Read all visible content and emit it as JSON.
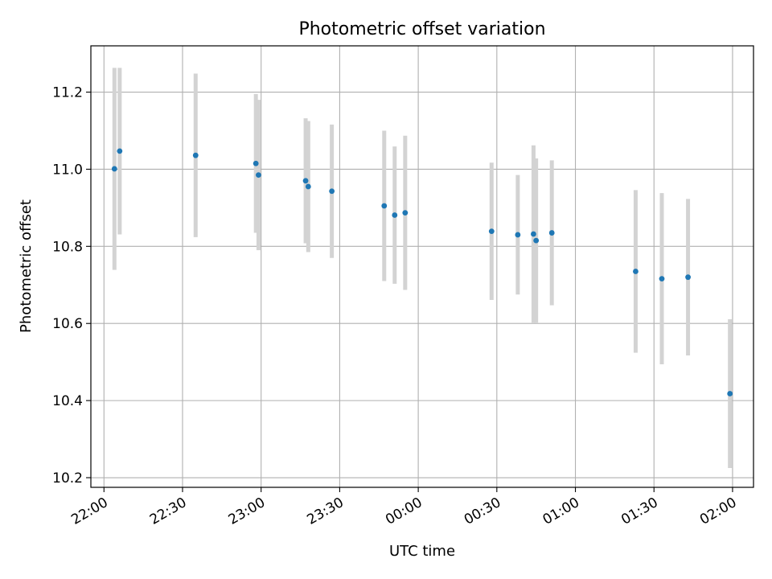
{
  "chart_data": {
    "type": "scatter",
    "title": "Photometric offset variation",
    "xlabel": "UTC time",
    "ylabel": "Photometric offset",
    "x_ticks": [
      {
        "time": "22:00",
        "label": "22:00"
      },
      {
        "time": "22:30",
        "label": "22:30"
      },
      {
        "time": "23:00",
        "label": "23:00"
      },
      {
        "time": "23:30",
        "label": "23:30"
      },
      {
        "time": "00:00",
        "label": "00:00"
      },
      {
        "time": "00:30",
        "label": "00:30"
      },
      {
        "time": "01:00",
        "label": "01:00"
      },
      {
        "time": "01:30",
        "label": "01:30"
      },
      {
        "time": "02:00",
        "label": "02:00"
      }
    ],
    "y_ticks": [
      {
        "value": 10.2,
        "label": "10.2"
      },
      {
        "value": 10.4,
        "label": "10.4"
      },
      {
        "value": 10.6,
        "label": "10.6"
      },
      {
        "value": 10.8,
        "label": "10.8"
      },
      {
        "value": 11.0,
        "label": "11.0"
      },
      {
        "value": 11.2,
        "label": "11.2"
      }
    ],
    "xlim": [
      "21:55",
      "02:08"
    ],
    "ylim": [
      10.175,
      11.32
    ],
    "grid": true,
    "marker_color": "#1f77b4",
    "errorbar_color": "#d3d3d3",
    "points": [
      {
        "time": "22:04",
        "y": 11.001,
        "err": 0.262
      },
      {
        "time": "22:06",
        "y": 11.047,
        "err": 0.216
      },
      {
        "time": "22:35",
        "y": 11.036,
        "err": 0.212
      },
      {
        "time": "22:58",
        "y": 11.015,
        "err": 0.18
      },
      {
        "time": "22:59",
        "y": 10.985,
        "err": 0.195
      },
      {
        "time": "23:17",
        "y": 10.97,
        "err": 0.162
      },
      {
        "time": "23:18",
        "y": 10.955,
        "err": 0.17
      },
      {
        "time": "23:27",
        "y": 10.943,
        "err": 0.173
      },
      {
        "time": "23:47",
        "y": 10.905,
        "err": 0.195
      },
      {
        "time": "23:51",
        "y": 10.881,
        "err": 0.178
      },
      {
        "time": "23:55",
        "y": 10.887,
        "err": 0.2
      },
      {
        "time": "00:28",
        "y": 10.839,
        "err": 0.178
      },
      {
        "time": "00:38",
        "y": 10.83,
        "err": 0.155
      },
      {
        "time": "00:44",
        "y": 10.832,
        "err": 0.23
      },
      {
        "time": "00:45",
        "y": 10.815,
        "err": 0.213
      },
      {
        "time": "00:51",
        "y": 10.835,
        "err": 0.188
      },
      {
        "time": "01:23",
        "y": 10.735,
        "err": 0.211
      },
      {
        "time": "01:33",
        "y": 10.716,
        "err": 0.222
      },
      {
        "time": "01:43",
        "y": 10.72,
        "err": 0.203
      },
      {
        "time": "01:59",
        "y": 10.418,
        "err": 0.193
      }
    ]
  }
}
